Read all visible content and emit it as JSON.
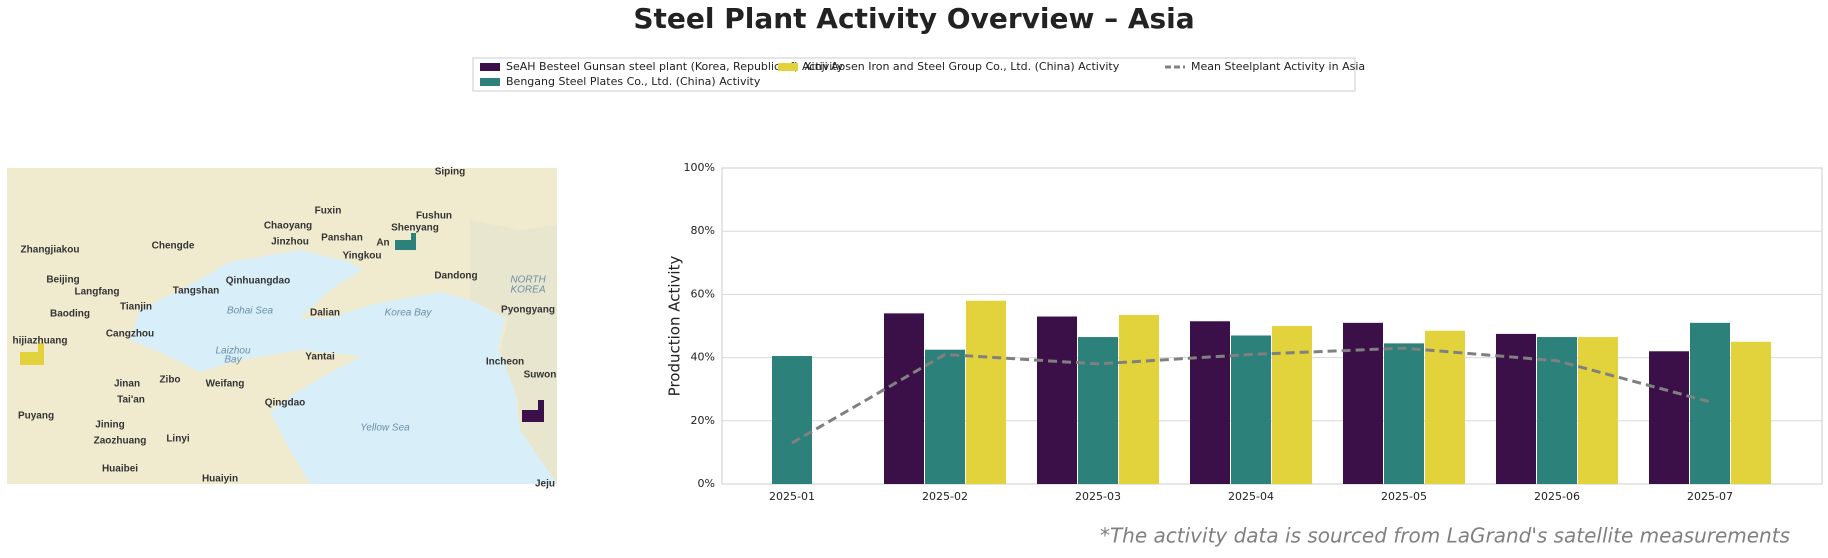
{
  "chart_data": {
    "type": "bar",
    "title": "Steel Plant Activity Overview – Asia",
    "ylabel": "Production Activity",
    "footnote": "*The activity data is sourced from LaGrand's satellite measurements",
    "categories": [
      "2025-01",
      "2025-02",
      "2025-03",
      "2025-04",
      "2025-05",
      "2025-06",
      "2025-07"
    ],
    "series": [
      {
        "name": "SeAH Besteel Gunsan steel plant (Korea, Republic of) Activity",
        "color": "#3b0f48",
        "values": [
          null,
          54,
          53,
          51.5,
          51,
          47.5,
          42
        ]
      },
      {
        "name": "Bengang Steel Plates Co., Ltd. (China) Activity",
        "color": "#2c817b",
        "values": [
          40.5,
          42.5,
          46.5,
          47,
          44.5,
          46.5,
          51
        ]
      },
      {
        "name": "Xinji Aosen Iron and Steel Group Co., Ltd. (China) Activity",
        "color": "#e2d23b",
        "values": [
          null,
          58,
          53.5,
          50,
          48.5,
          46.5,
          45
        ]
      },
      {
        "name": "Mean Steelplant Activity in Asia",
        "type": "line",
        "color": "#808080",
        "dashed": true,
        "values": [
          13,
          41,
          38,
          41,
          43,
          39,
          26
        ]
      }
    ],
    "ylim": [
      0,
      100
    ],
    "yticks": [
      {
        "value": 0,
        "label": "0%"
      },
      {
        "value": 20,
        "label": "20%"
      },
      {
        "value": 40,
        "label": "40%"
      },
      {
        "value": 60,
        "label": "60%"
      },
      {
        "value": 80,
        "label": "80%"
      },
      {
        "value": 100,
        "label": "100%"
      }
    ],
    "grid": true,
    "legend": "upper center"
  },
  "map": {
    "labels": [
      "Siping",
      "Fuxin",
      "Fushun",
      "Chaoyang",
      "Shenyang",
      "Zhangjiakou",
      "Chengde",
      "Jinzhou",
      "Panshan",
      "Yingkou",
      "An",
      "Dandong",
      "NORTH",
      "KOREA",
      "Beijing",
      "Qinhuangdao",
      "Langfang",
      "Tangshan",
      "Tianjin",
      "Bohai Sea",
      "Dalian",
      "Korea Bay",
      "Pyongyang",
      "Baoding",
      "Cangzhou",
      "hijiazhuang",
      "Laizhou",
      "Bay",
      "Yantai",
      "Incheon",
      "Jinan",
      "Zibo",
      "Weifang",
      "Suwon",
      "Tai'an",
      "Qingdao",
      "Puyang",
      "Jining",
      "Linyi",
      "Zaozhuang",
      "Yellow Sea",
      "Huaibei",
      "Huaiyin",
      "Jeju"
    ]
  }
}
